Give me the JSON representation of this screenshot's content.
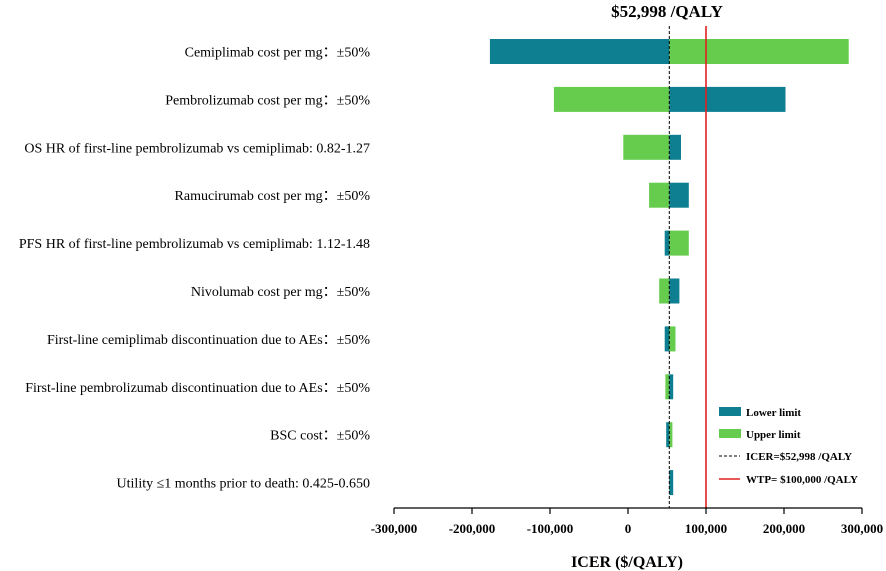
{
  "chart_data": {
    "type": "tornado",
    "title": "$52,998 /QALY",
    "xlabel": "ICER ($/QALY)",
    "ylabel": "",
    "xlim": [
      -300000,
      300000
    ],
    "xticks": [
      -300000,
      -200000,
      -100000,
      0,
      100000,
      200000,
      300000
    ],
    "xtick_labels": [
      "-300,000",
      "-200,000",
      "-100,000",
      "0",
      "100,000",
      "200,000",
      "300,000"
    ],
    "base_icer": 52998,
    "wtp": 100000,
    "colors": {
      "lower": "#0d7f91",
      "upper": "#66cc4d",
      "icer_line": "#000000",
      "wtp_line": "#e02020"
    },
    "categories": [
      "Cemiplimab cost per mg：±50%",
      "Pembrolizumab cost per mg：±50%",
      "OS HR of first-line pembrolizumab vs cemiplimab: 0.82-1.27",
      "Ramucirumab cost per mg：±50%",
      "PFS HR of first-line pembrolizumab vs cemiplimab: 1.12-1.48",
      "Nivolumab cost per mg：±50%",
      "First-line cemiplimab discontinuation due to AEs：±50%",
      "First-line pembrolizumab discontinuation due to AEs：±50%",
      "BSC cost：±50%",
      "Utility ≤1 months prior to death: 0.425-0.650"
    ],
    "series": [
      {
        "name": "Lower limit",
        "values": [
          -177000,
          202000,
          68000,
          78000,
          47000,
          66000,
          47000,
          58000,
          49000,
          58000
        ]
      },
      {
        "name": "Upper limit",
        "values": [
          283000,
          -95000,
          -6000,
          27000,
          78000,
          40000,
          61000,
          48000,
          57000,
          53000
        ]
      }
    ],
    "legend": {
      "position": "bottom-right",
      "entries": [
        "Lower limit",
        "Upper limit",
        "ICER=$52,998 /QALY",
        "WTP= $100,000 /QALY"
      ]
    }
  }
}
